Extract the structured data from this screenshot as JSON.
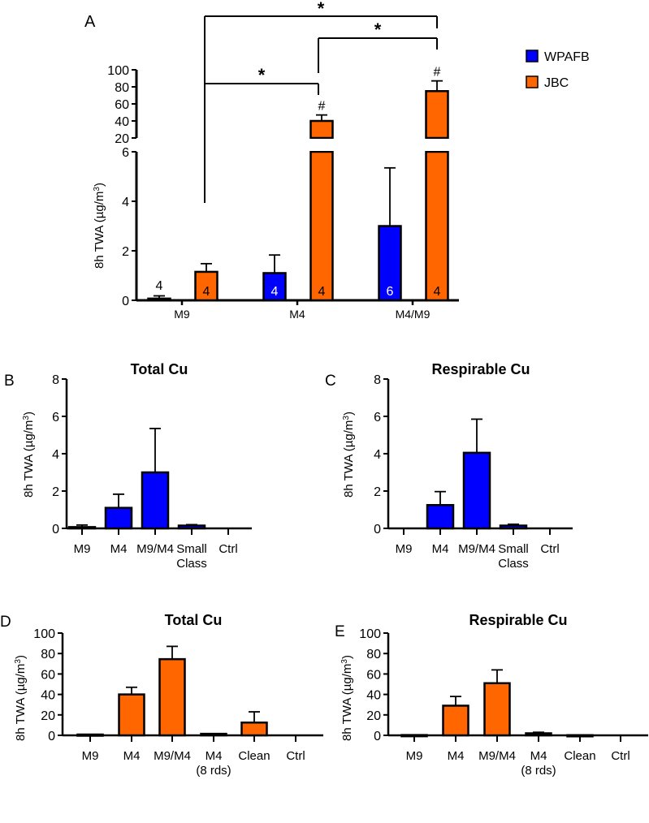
{
  "colors": {
    "wpafb": "#0000ff",
    "jbc": "#ff6600",
    "axis": "#000000"
  },
  "chart_data": [
    {
      "panel": "A",
      "type": "bar",
      "title": "",
      "ylabel": "8h TWA (µg/m³)",
      "categories": [
        "M9",
        "M4",
        "M4/M9"
      ],
      "y_segments": [
        {
          "range": [
            0,
            6
          ],
          "ticks": [
            "0",
            "2",
            "4",
            "6"
          ]
        },
        {
          "range": [
            20,
            100
          ],
          "ticks": [
            "20",
            "40",
            "60",
            "80",
            "100"
          ]
        }
      ],
      "legend": {
        "placement": "right",
        "entries": [
          "WPAFB",
          "JBC"
        ]
      },
      "series": [
        {
          "name": "WPAFB",
          "values": [
            0.07,
            1.1,
            3.0
          ],
          "error_upper": [
            0.18,
            1.83,
            5.35
          ],
          "n_labels": [
            "4",
            "4",
            "6"
          ]
        },
        {
          "name": "JBC",
          "values": [
            1.15,
            40,
            75
          ],
          "error_upper": [
            1.48,
            47,
            87
          ],
          "n_labels": [
            "4",
            "4",
            "4"
          ],
          "markers": [
            "",
            "#",
            "#"
          ]
        }
      ],
      "significance": [
        {
          "from": "M9 JBC",
          "to": "M4 JBC",
          "label": "*"
        },
        {
          "from": "M4 JBC",
          "to": "M4/M9 JBC",
          "label": "*"
        },
        {
          "from": "M9 JBC",
          "to": "M4/M9 JBC",
          "label": "*"
        }
      ]
    },
    {
      "panel": "B",
      "type": "bar",
      "title": "Total Cu",
      "ylabel": "8h TWA (µg/m³)",
      "ylim": [
        0,
        8
      ],
      "yticks": [
        "0",
        "2",
        "4",
        "6",
        "8"
      ],
      "categories": [
        "M9",
        "M4",
        "M9/M4",
        "Small Class",
        "Ctrl"
      ],
      "values": [
        0.07,
        1.1,
        3.0,
        0.15,
        0
      ],
      "error_upper": [
        0.18,
        1.83,
        5.35,
        0.2,
        0
      ],
      "color": "wpafb"
    },
    {
      "panel": "C",
      "type": "bar",
      "title": "Respirable Cu",
      "ylabel": "8h TWA (µg/m³)",
      "ylim": [
        0,
        8
      ],
      "yticks": [
        "0",
        "2",
        "4",
        "6",
        "8"
      ],
      "categories": [
        "M9",
        "M4",
        "M9/M4",
        "Small Class",
        "Ctrl"
      ],
      "values": [
        0,
        1.25,
        4.05,
        0.15,
        0
      ],
      "error_upper": [
        0,
        1.97,
        5.85,
        0.22,
        0
      ],
      "color": "wpafb"
    },
    {
      "panel": "D",
      "type": "bar",
      "title": "Total Cu",
      "ylabel": "8h TWA (µg/m³)",
      "ylim": [
        0,
        100
      ],
      "yticks": [
        "0",
        "20",
        "40",
        "60",
        "80",
        "100"
      ],
      "categories": [
        "M9",
        "M4",
        "M9/M4",
        "M4 (8 rds)",
        "Clean",
        "Ctrl"
      ],
      "values": [
        0.8,
        40,
        74.5,
        1.5,
        12.5,
        0
      ],
      "error_upper": [
        1.5,
        47,
        87,
        2.2,
        23,
        0
      ],
      "color": "jbc"
    },
    {
      "panel": "E",
      "type": "bar",
      "title": "Respirable  Cu",
      "ylabel": "8h TWA (µg/m³)",
      "ylim": [
        0,
        100
      ],
      "yticks": [
        "0",
        "20",
        "40",
        "60",
        "80",
        "100"
      ],
      "categories": [
        "M9",
        "M4",
        "M9/M4",
        "M4 (8 rds)",
        "Clean",
        "Ctrl"
      ],
      "values": [
        0.3,
        29,
        51,
        2,
        0.2,
        0
      ],
      "error_upper": [
        0.6,
        38,
        64,
        3,
        0.5,
        0
      ],
      "color": "jbc"
    }
  ]
}
